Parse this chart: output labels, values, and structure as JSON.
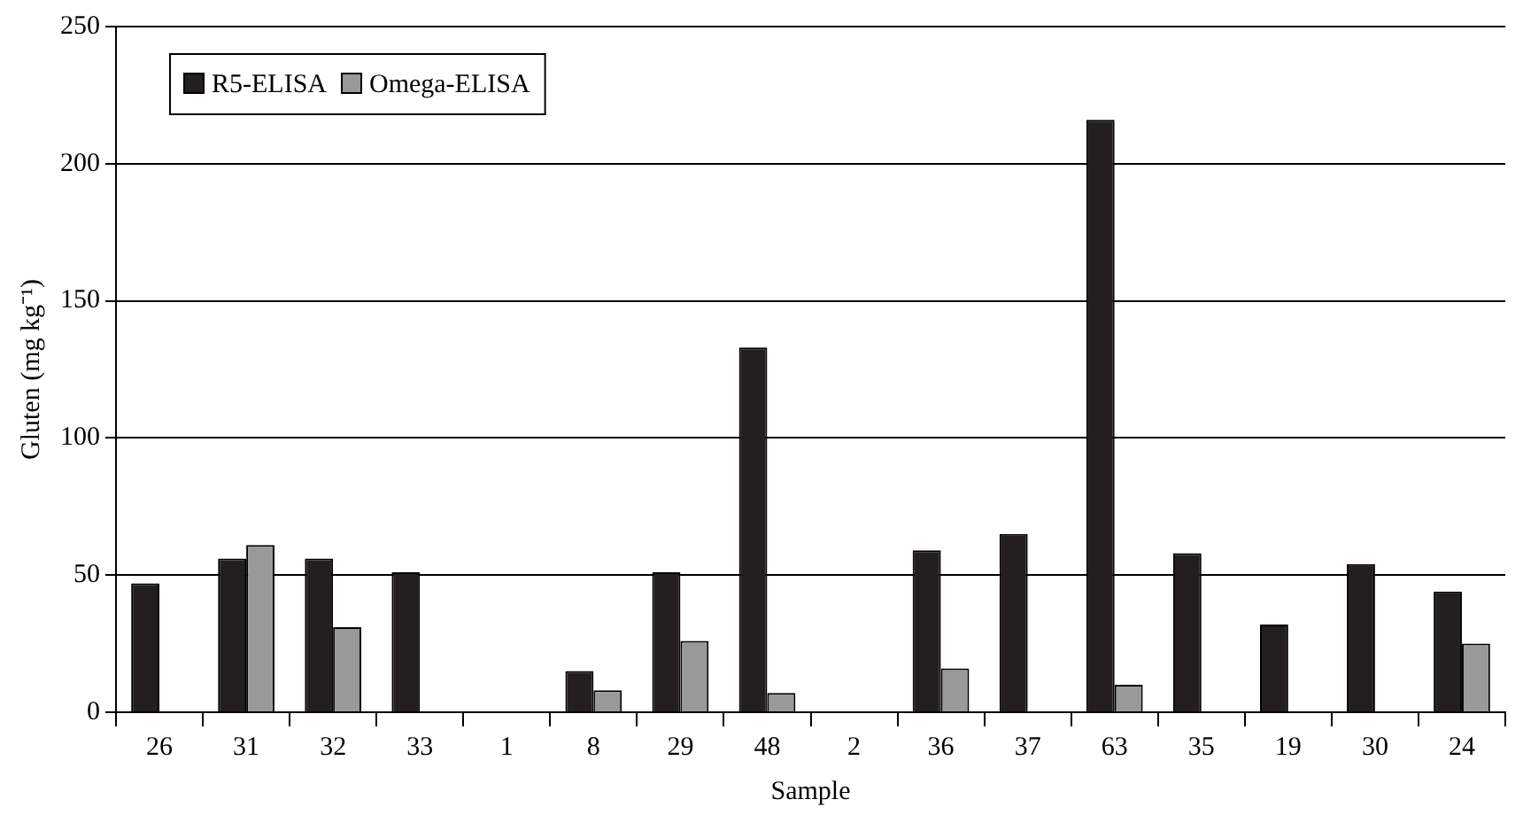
{
  "chart_data": {
    "type": "bar",
    "xlabel": "Sample",
    "ylabel": "Gluten (mg kg⁻¹)",
    "categories": [
      "26",
      "31",
      "32",
      "33",
      "1",
      "8",
      "29",
      "48",
      "2",
      "36",
      "37",
      "63",
      "35",
      "19",
      "30",
      "24"
    ],
    "series": [
      {
        "name": "R5-ELISA",
        "color": "#231f20",
        "values": [
          47,
          56,
          56,
          51,
          null,
          15,
          51,
          133,
          null,
          59,
          65,
          216,
          58,
          32,
          54,
          44
        ]
      },
      {
        "name": "Omega-ELISA",
        "color": "#999999",
        "values": [
          null,
          61,
          31,
          null,
          null,
          8,
          26,
          7,
          null,
          16,
          null,
          10,
          null,
          null,
          null,
          25
        ]
      }
    ],
    "ylim": [
      0,
      250
    ],
    "yticks": [
      0,
      50,
      100,
      150,
      200,
      250
    ],
    "grid": "y",
    "legend": "top left"
  }
}
